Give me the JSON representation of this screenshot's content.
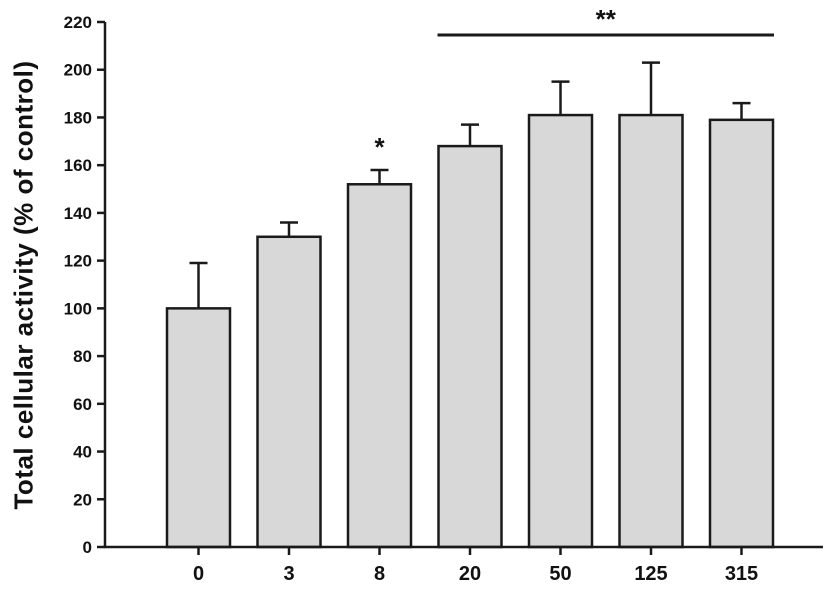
{
  "figure": {
    "background": "#ffffff",
    "bar_fill": "#d8d8d8",
    "line_color": "#1a1a1a",
    "text_color": "#111111"
  },
  "chart_data": {
    "type": "bar",
    "categories": [
      "0",
      "3",
      "8",
      "20",
      "50",
      "125",
      "315"
    ],
    "values": [
      100,
      130,
      152,
      168,
      181,
      181,
      179
    ],
    "errors_plus": [
      19,
      6,
      6,
      9,
      14,
      22,
      7
    ],
    "title": "",
    "xlabel": "",
    "ylabel": "Total cellular activity (% of control)",
    "ylim": [
      0,
      220
    ],
    "ytick_step": 20,
    "ytick_labels": [
      "0",
      "20",
      "40",
      "60",
      "80",
      "100",
      "120",
      "140",
      "160",
      "180",
      "200",
      "220"
    ],
    "grid": false,
    "legend": null,
    "annotations": [
      {
        "type": "star",
        "label": "*",
        "category_index": 2
      },
      {
        "type": "bracket",
        "label": "**",
        "from_index": 3,
        "to_index": 6
      }
    ]
  }
}
